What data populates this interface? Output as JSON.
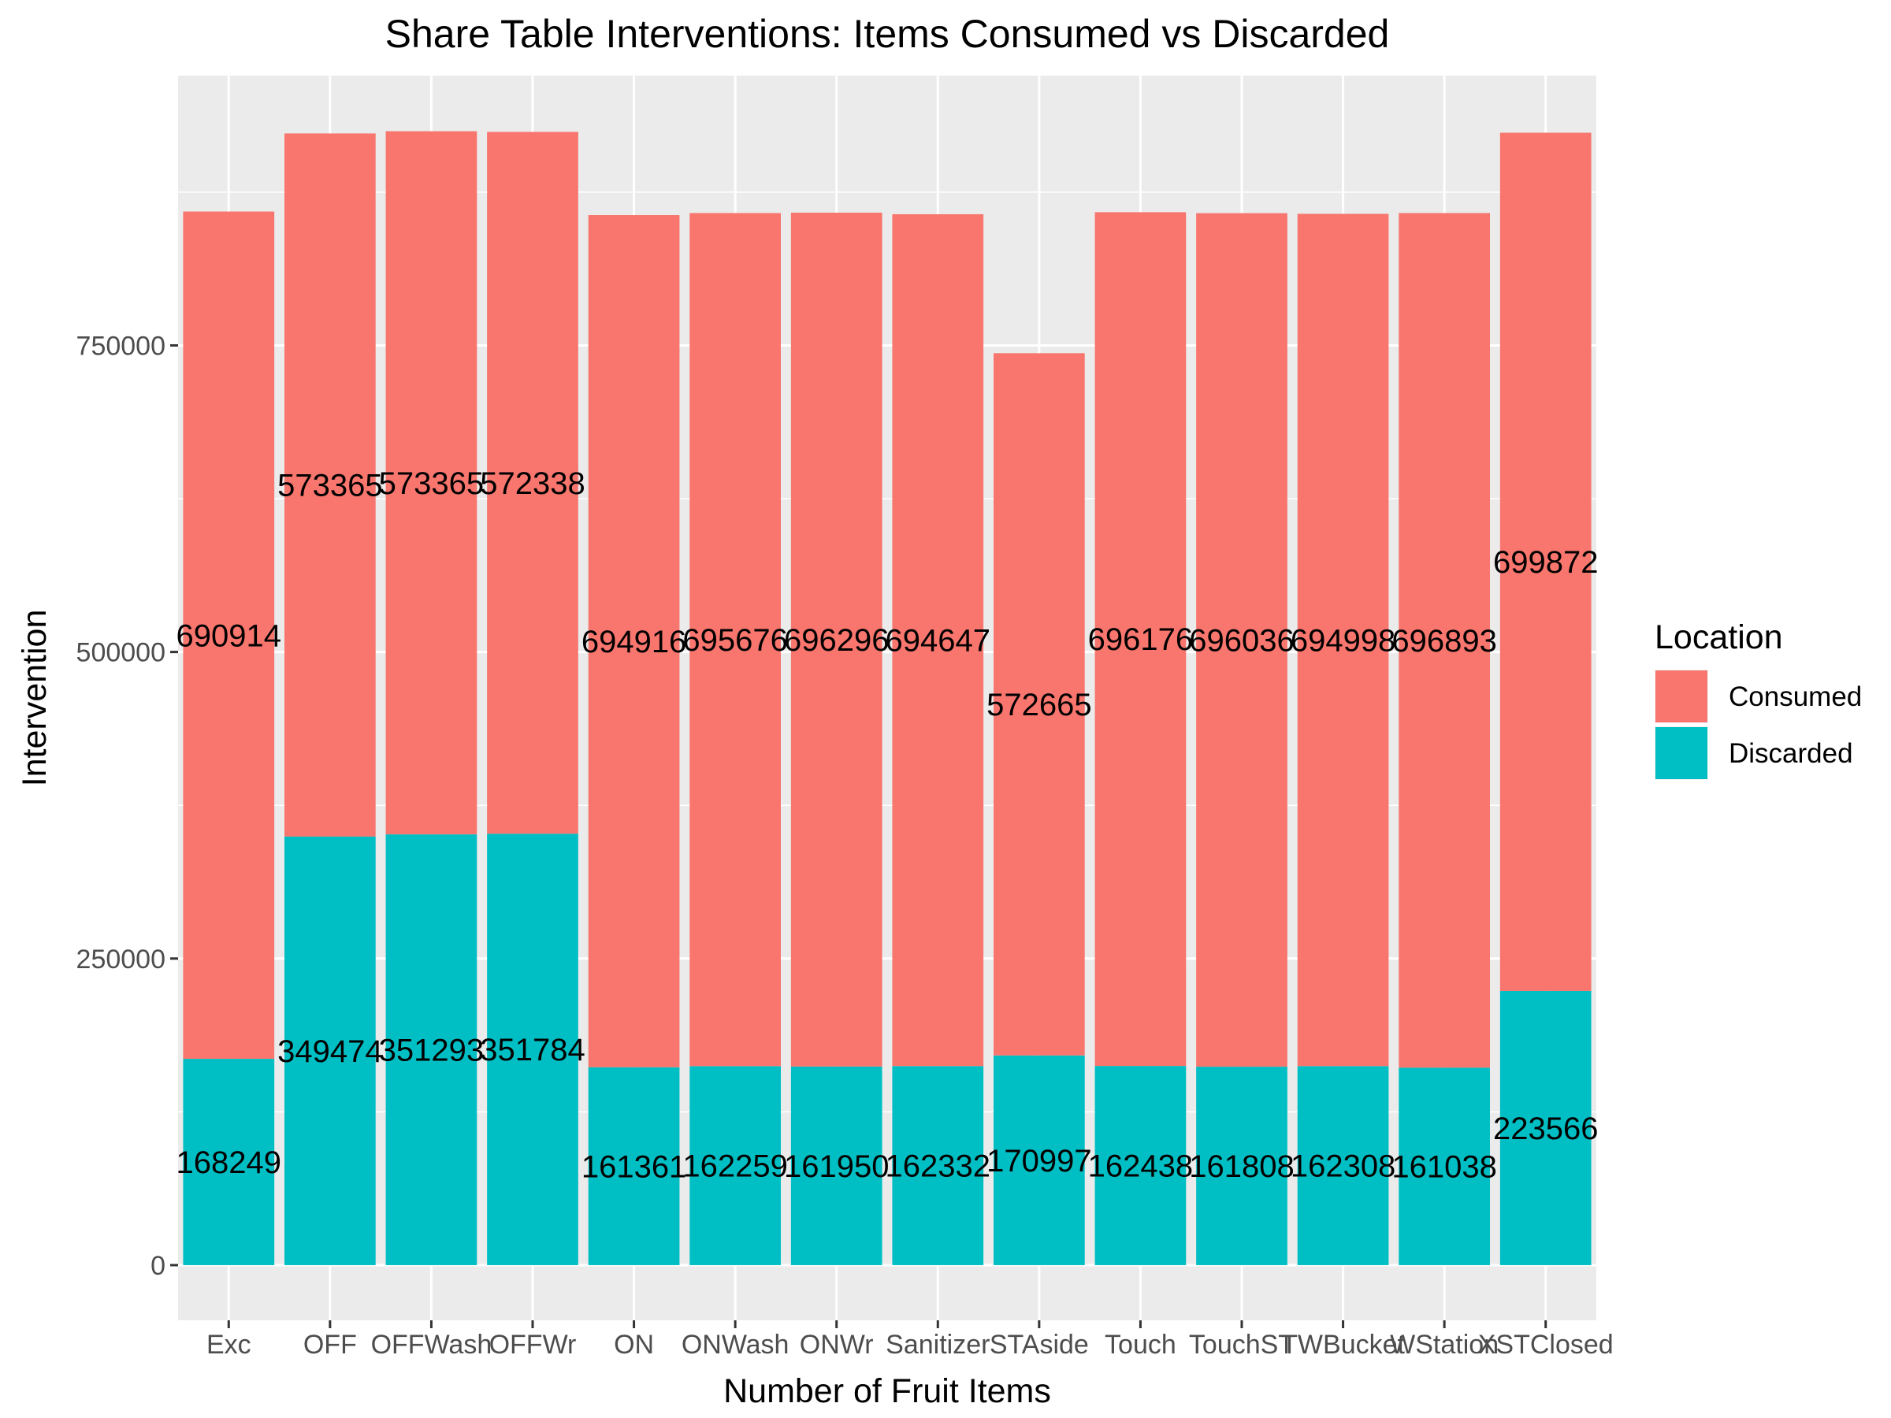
{
  "chart_data": {
    "type": "bar",
    "stacked": true,
    "title": "Share Table Interventions: Items Consumed vs Discarded",
    "xlabel": "Number of Fruit Items",
    "ylabel": "Intervention",
    "ylim": [
      -45000,
      970000
    ],
    "yticks": [
      0,
      250000,
      500000,
      750000
    ],
    "grid": true,
    "legend_position": "right",
    "categories": [
      "Exc",
      "OFF",
      "OFFWash",
      "OFFWr",
      "ON",
      "ONWash",
      "ONWr",
      "Sanitizer",
      "STAside",
      "Touch",
      "TouchST",
      "TWBucket",
      "WStation",
      "XSTClosed"
    ],
    "series": [
      {
        "name": "Discarded",
        "color": "#00BFC4",
        "values": [
          168249,
          349474,
          351293,
          351784,
          161361,
          162259,
          161950,
          162332,
          170997,
          162438,
          161808,
          162308,
          161038,
          223566
        ]
      },
      {
        "name": "Consumed",
        "color": "#F8766D",
        "values": [
          690914,
          573365,
          573365,
          572338,
          694916,
          695676,
          696296,
          694647,
          572665,
          696176,
          696036,
          694998,
          696893,
          699872
        ]
      }
    ],
    "legend": {
      "title": "Location",
      "entries": [
        {
          "label": "Consumed",
          "color": "#F8766D"
        },
        {
          "label": "Discarded",
          "color": "#00BFC4"
        }
      ]
    }
  }
}
